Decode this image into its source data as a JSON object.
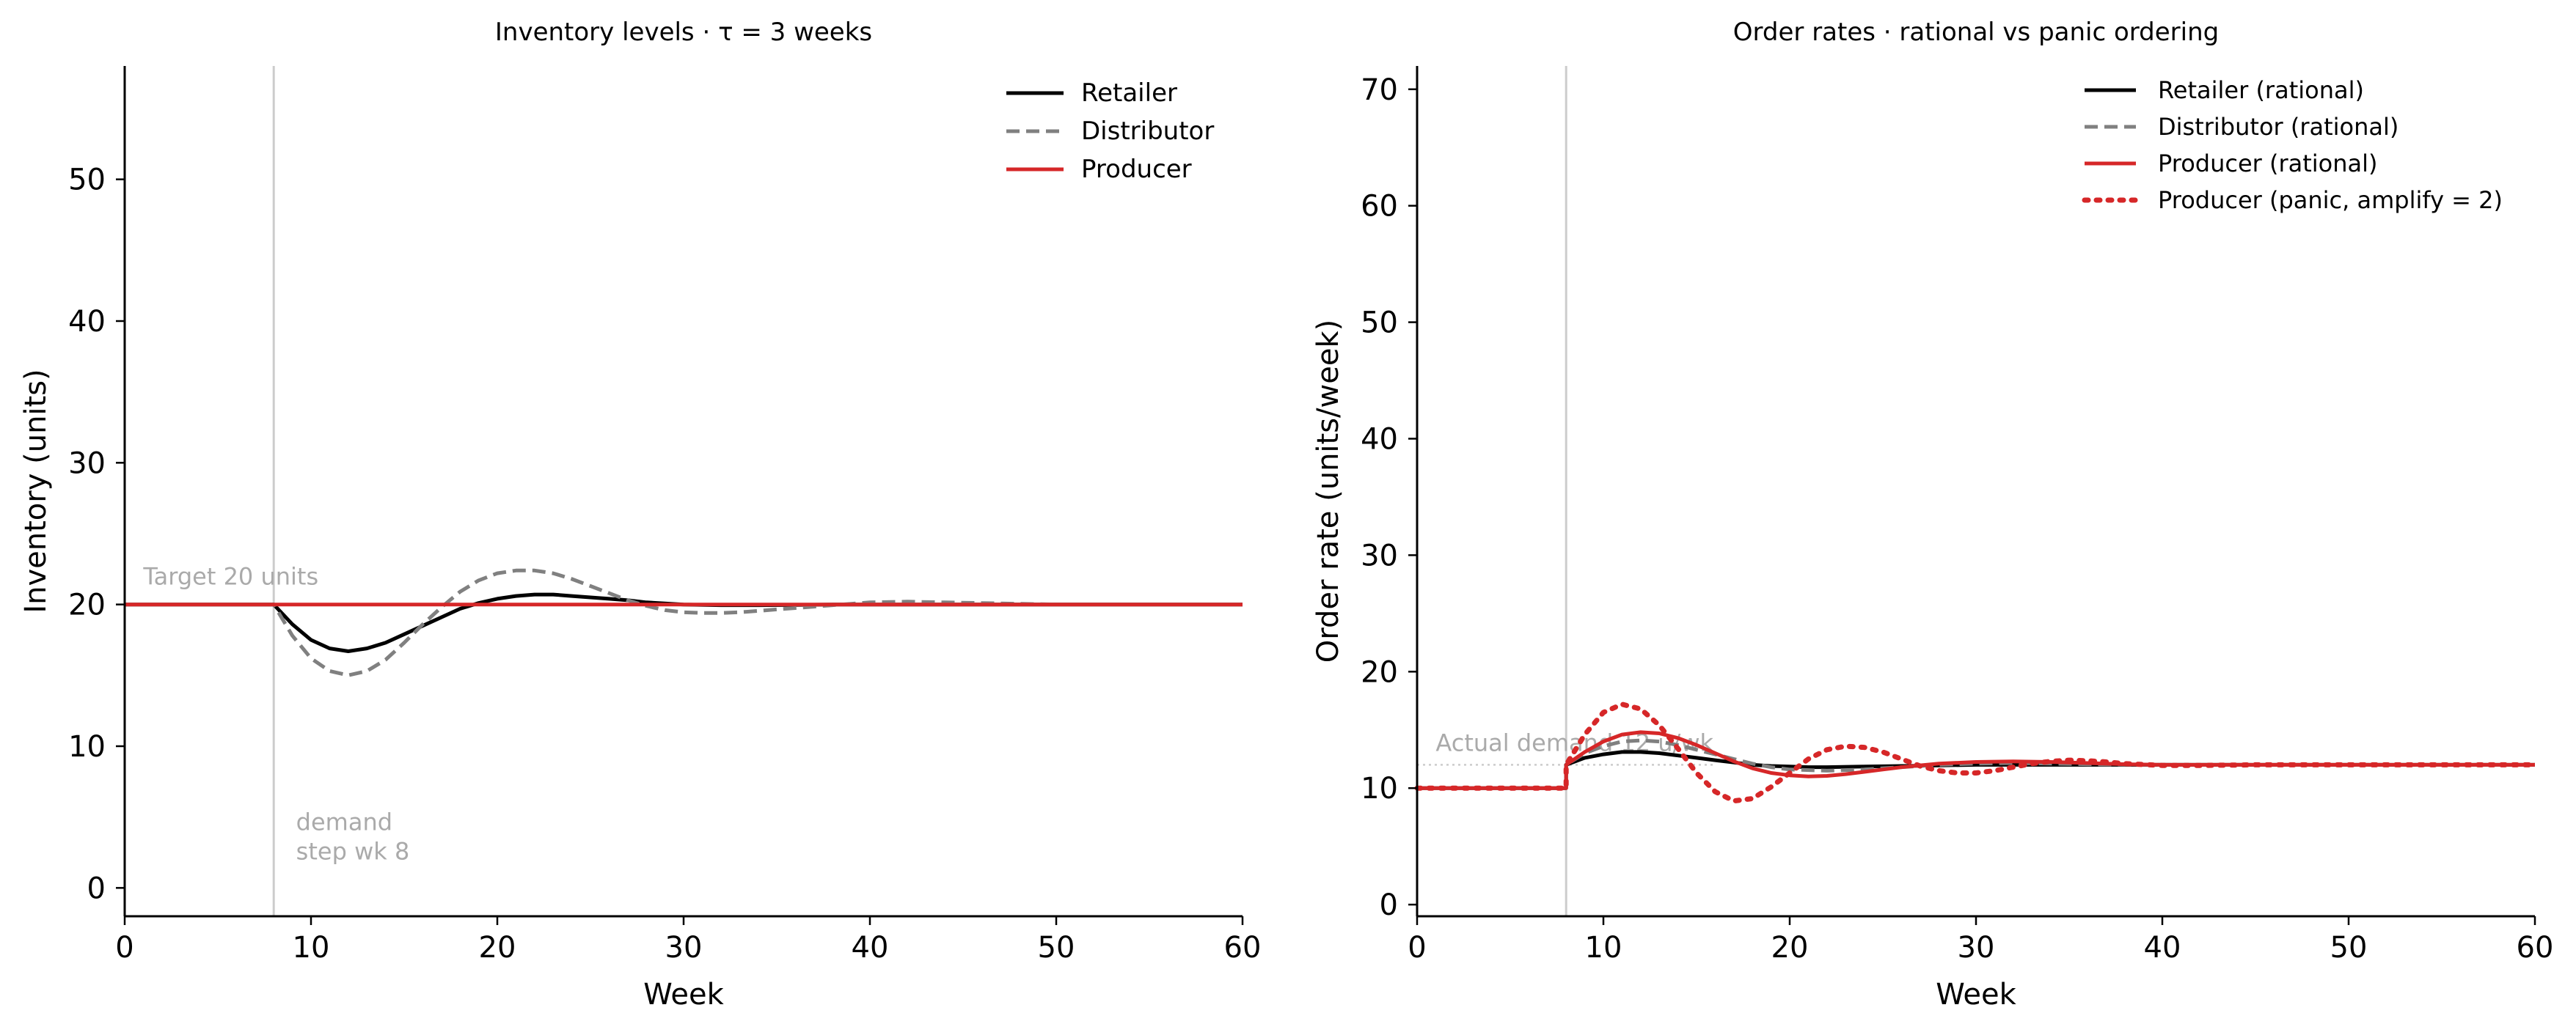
{
  "chart_data": [
    {
      "type": "line",
      "title": "Inventory levels  ·  τ = 3 weeks",
      "xlabel": "Week",
      "ylabel": "Inventory (units)",
      "xlim": [
        0,
        60
      ],
      "ylim": [
        -2,
        58
      ],
      "xticks": [
        0,
        10,
        20,
        30,
        40,
        50,
        60
      ],
      "yticks": [
        0,
        10,
        20,
        30,
        40,
        50
      ],
      "grid": false,
      "legend_position": "top-right",
      "reference_lines": [
        {
          "orientation": "vertical",
          "x": 8,
          "color": "#cccccc"
        }
      ],
      "annotations": [
        {
          "text": "Target 20 units",
          "x": 1,
          "y": 21.4
        },
        {
          "text_lines": [
            "demand",
            "step wk 8"
          ],
          "x": 9.2,
          "y": 2
        }
      ],
      "series": [
        {
          "name": "Retailer",
          "color": "#000000",
          "style": "solid",
          "x": [
            0,
            8,
            9,
            10,
            11,
            12,
            13,
            14,
            15,
            16,
            17,
            18,
            19,
            20,
            21,
            22,
            23,
            24,
            25,
            26,
            27,
            28,
            30,
            32,
            34,
            36,
            38,
            40,
            45,
            50,
            55,
            60
          ],
          "y": [
            20,
            20,
            18.6,
            17.5,
            16.9,
            16.7,
            16.9,
            17.3,
            17.9,
            18.5,
            19.1,
            19.7,
            20.1,
            20.4,
            20.6,
            20.7,
            20.7,
            20.6,
            20.5,
            20.4,
            20.3,
            20.15,
            20.0,
            19.95,
            19.95,
            19.97,
            20.0,
            20.0,
            20.0,
            20.0,
            20.0,
            20.0
          ]
        },
        {
          "name": "Distributor",
          "color": "#808080",
          "style": "dashed",
          "x": [
            0,
            8,
            9,
            10,
            11,
            12,
            13,
            14,
            15,
            16,
            17,
            18,
            19,
            20,
            21,
            22,
            23,
            24,
            25,
            26,
            27,
            28,
            29,
            30,
            31,
            32,
            33,
            34,
            35,
            36,
            37,
            38,
            39,
            40,
            42,
            44,
            46,
            48,
            50,
            55,
            60
          ],
          "y": [
            20,
            20,
            17.8,
            16.2,
            15.3,
            15.0,
            15.3,
            16.1,
            17.3,
            18.6,
            19.8,
            20.9,
            21.7,
            22.2,
            22.4,
            22.4,
            22.2,
            21.8,
            21.3,
            20.8,
            20.3,
            19.9,
            19.6,
            19.45,
            19.4,
            19.4,
            19.45,
            19.55,
            19.65,
            19.75,
            19.85,
            19.95,
            20.05,
            20.15,
            20.2,
            20.15,
            20.1,
            20.05,
            20.0,
            20.0,
            20.0
          ]
        },
        {
          "name": "Producer",
          "color": "#d62728",
          "style": "solid",
          "x": [
            0,
            60
          ],
          "y": [
            20,
            20
          ]
        }
      ]
    },
    {
      "type": "line",
      "title": "Order rates  ·  rational vs panic ordering",
      "xlabel": "Week",
      "ylabel": "Order rate (units/week)",
      "xlim": [
        0,
        60
      ],
      "ylim": [
        -1,
        72
      ],
      "xticks": [
        0,
        10,
        20,
        30,
        40,
        50,
        60
      ],
      "yticks": [
        0,
        10,
        20,
        30,
        40,
        50,
        60,
        70
      ],
      "grid": false,
      "legend_position": "top-right",
      "reference_lines": [
        {
          "orientation": "vertical",
          "x": 8,
          "color": "#cccccc"
        },
        {
          "orientation": "horizontal",
          "y": 12,
          "from_x": 0,
          "to_x": 16,
          "color": "#cccccc",
          "style": "dotted"
        }
      ],
      "annotations": [
        {
          "text": "Actual demand 12 u/wk",
          "x": 1,
          "y": 13.2
        }
      ],
      "series": [
        {
          "name": "Retailer (rational)",
          "color": "#000000",
          "style": "solid",
          "x": [
            0,
            8,
            8,
            9,
            10,
            11,
            12,
            13,
            14,
            15,
            16,
            17,
            18,
            19,
            20,
            21,
            22,
            24,
            26,
            28,
            30,
            35,
            40,
            60
          ],
          "y": [
            10,
            10,
            12,
            12.6,
            12.9,
            13.1,
            13.1,
            13.0,
            12.8,
            12.6,
            12.4,
            12.2,
            12.0,
            11.9,
            11.85,
            11.8,
            11.8,
            11.85,
            11.9,
            11.95,
            12.0,
            12.0,
            12.0,
            12.0
          ]
        },
        {
          "name": "Distributor (rational)",
          "color": "#808080",
          "style": "dashed",
          "x": [
            0,
            8,
            8,
            9,
            10,
            11,
            12,
            13,
            14,
            15,
            16,
            17,
            18,
            19,
            20,
            22,
            24,
            26,
            28,
            30,
            32,
            34,
            36,
            40,
            45,
            60
          ],
          "y": [
            10,
            10,
            12,
            13.0,
            13.6,
            14.0,
            14.1,
            14.0,
            13.7,
            13.3,
            12.9,
            12.5,
            12.1,
            11.8,
            11.6,
            11.5,
            11.6,
            11.8,
            12.0,
            12.1,
            12.15,
            12.1,
            12.05,
            12.0,
            12.0,
            12.0
          ]
        },
        {
          "name": "Producer (rational)",
          "color": "#d62728",
          "style": "solid",
          "x": [
            0,
            8,
            8,
            9,
            10,
            11,
            12,
            13,
            14,
            15,
            16,
            17,
            18,
            19,
            20,
            21,
            22,
            23,
            24,
            25,
            26,
            28,
            30,
            32,
            34,
            36,
            38,
            40,
            45,
            50,
            60
          ],
          "y": [
            10,
            10,
            12,
            13.1,
            14.0,
            14.6,
            14.8,
            14.7,
            14.3,
            13.7,
            13.0,
            12.3,
            11.7,
            11.3,
            11.1,
            11.0,
            11.05,
            11.2,
            11.4,
            11.6,
            11.8,
            12.1,
            12.25,
            12.3,
            12.25,
            12.15,
            12.05,
            12.0,
            12.0,
            12.0,
            12.0
          ]
        },
        {
          "name": "Producer (panic, amplify = 2)",
          "color": "#d62728",
          "style": "dotted",
          "x": [
            0,
            8,
            8,
            9,
            10,
            11,
            12,
            13,
            14,
            15,
            16,
            17,
            18,
            19,
            20,
            21,
            22,
            23,
            24,
            25,
            26,
            27,
            28,
            29,
            30,
            31,
            32,
            33,
            34,
            35,
            36,
            37,
            38,
            40,
            42,
            45,
            50,
            60
          ],
          "y": [
            10,
            10,
            12,
            14.6,
            16.5,
            17.2,
            16.8,
            15.4,
            13.4,
            11.3,
            9.7,
            8.9,
            9.1,
            10.1,
            11.3,
            12.5,
            13.3,
            13.6,
            13.5,
            13.1,
            12.5,
            11.9,
            11.5,
            11.3,
            11.3,
            11.5,
            11.8,
            12.1,
            12.3,
            12.4,
            12.35,
            12.25,
            12.1,
            11.95,
            11.95,
            12.0,
            12.0,
            12.0
          ]
        }
      ]
    }
  ]
}
